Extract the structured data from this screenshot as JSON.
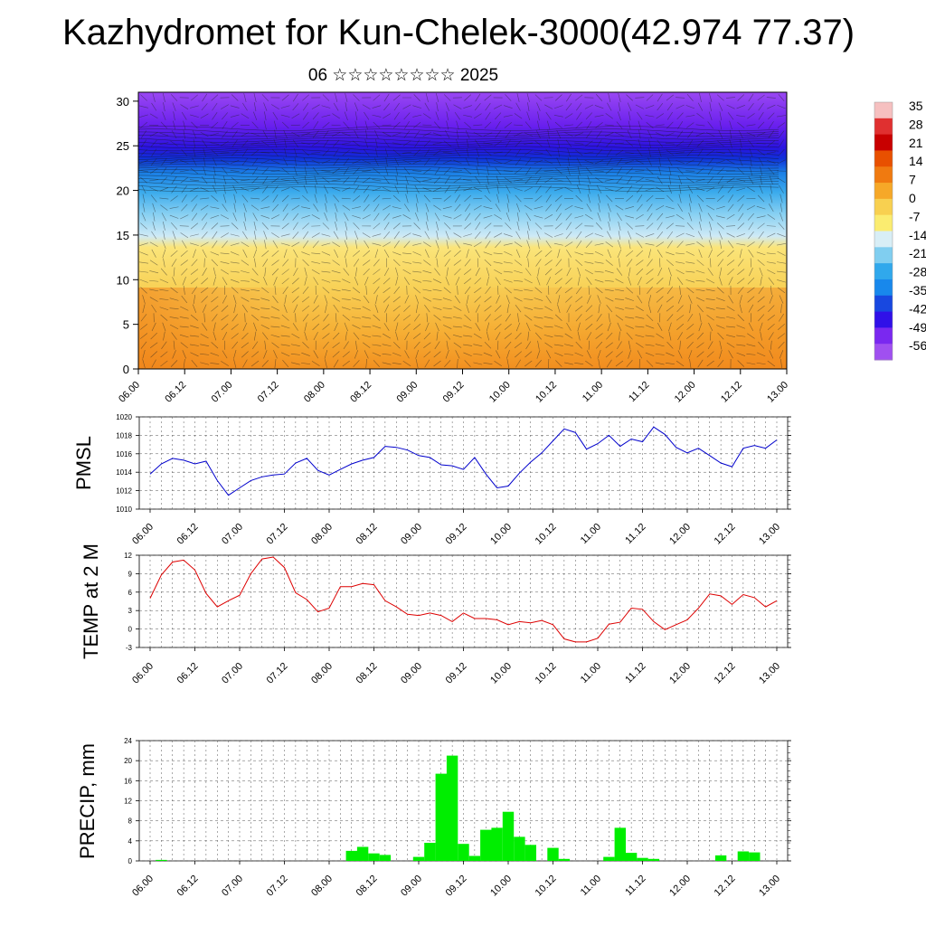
{
  "title": "Kazhydromet for Kun-Chelek-3000(42.974 77.37)",
  "subtitle": "06 ☆☆☆☆☆☆☆☆ 2025",
  "colors": {
    "pmsl_line": "#0000cc",
    "temp_line": "#dd0000",
    "precip_bar": "#00ee00",
    "grid": "#555555"
  },
  "chart_data": [
    {
      "type": "heatmap",
      "id": "cross-section",
      "y_ticks": [
        "0",
        "5",
        "10",
        "15",
        "20",
        "25",
        "30"
      ],
      "ylim": [
        0,
        31
      ],
      "x_ticks": [
        "06.00",
        "06.12",
        "07.00",
        "07.12",
        "08.00",
        "08.12",
        "09.00",
        "09.12",
        "10.00",
        "10.12",
        "11.00",
        "11.12",
        "12.00",
        "12.12",
        "13.00"
      ],
      "colorbar_labels": [
        "35",
        "28",
        "21",
        "14",
        "7",
        "0",
        "-7",
        "-14",
        "-21",
        "-28",
        "-35",
        "-42",
        "-49",
        "-56"
      ],
      "colorbar_colors": [
        "#f6c0c0",
        "#e03030",
        "#c80000",
        "#e85000",
        "#f07a10",
        "#f6a828",
        "#f8d050",
        "#fbec70",
        "#d8eef6",
        "#80cef0",
        "#30a8ec",
        "#1888ec",
        "#1848e0",
        "#3010e8",
        "#7a28f0",
        "#a050f0"
      ]
    },
    {
      "type": "line",
      "id": "pmsl",
      "ylabel": "PMSL",
      "ylim": [
        1010,
        1020
      ],
      "y_ticks": [
        "1010",
        "1012",
        "1014",
        "1016",
        "1018",
        "1020"
      ],
      "x_ticks": [
        "06.00",
        "06.12",
        "07.00",
        "07.12",
        "08.00",
        "08.12",
        "09.00",
        "09.12",
        "10.00",
        "10.12",
        "11.00",
        "11.12",
        "12.00",
        "12.12",
        "13.00"
      ],
      "values": [
        1013.8,
        1014.9,
        1015.5,
        1015.3,
        1014.9,
        1015.2,
        1013.1,
        1011.5,
        1012.3,
        1013.1,
        1013.5,
        1013.7,
        1013.8,
        1015.0,
        1015.5,
        1014.2,
        1013.7,
        1014.3,
        1014.9,
        1015.3,
        1015.6,
        1016.8,
        1016.7,
        1016.4,
        1015.8,
        1015.6,
        1014.8,
        1014.7,
        1014.3,
        1015.6,
        1013.8,
        1012.3,
        1012.5,
        1013.9,
        1015.1,
        1016.1,
        1017.4,
        1018.7,
        1018.3,
        1016.5,
        1017.1,
        1018.0,
        1016.8,
        1017.6,
        1017.3,
        1018.9,
        1018.1,
        1016.7,
        1016.1,
        1016.6,
        1015.8,
        1015.0,
        1014.6,
        1016.6,
        1016.9,
        1016.6,
        1017.5
      ]
    },
    {
      "type": "line",
      "id": "temp",
      "ylabel": "TEMP at 2 M",
      "ylim": [
        -3,
        12
      ],
      "y_ticks": [
        "-3",
        "0",
        "3",
        "6",
        "9",
        "12"
      ],
      "x_ticks": [
        "06.00",
        "06.12",
        "07.00",
        "07.12",
        "08.00",
        "08.12",
        "09.00",
        "09.12",
        "10.00",
        "10.12",
        "11.00",
        "11.12",
        "12.00",
        "12.12",
        "13.00"
      ],
      "values": [
        5.0,
        8.8,
        10.9,
        11.2,
        9.6,
        5.8,
        3.6,
        4.6,
        5.5,
        9.0,
        11.4,
        11.7,
        10.0,
        5.9,
        4.8,
        2.8,
        3.4,
        6.9,
        6.9,
        7.4,
        7.2,
        4.6,
        3.6,
        2.4,
        2.2,
        2.6,
        2.2,
        1.2,
        2.6,
        1.7,
        1.7,
        1.5,
        0.7,
        1.2,
        1.0,
        1.4,
        0.7,
        -1.6,
        -2.1,
        -2.1,
        -1.5,
        0.8,
        1.1,
        3.4,
        3.2,
        1.2,
        -0.1,
        0.7,
        1.5,
        3.4,
        5.7,
        5.4,
        4.0,
        5.6,
        5.1,
        3.6,
        4.6
      ]
    },
    {
      "type": "bar",
      "id": "precip",
      "ylabel": "PRECIP, mm",
      "ylim": [
        0,
        24
      ],
      "y_ticks": [
        "0",
        "4",
        "8",
        "12",
        "16",
        "20",
        "24"
      ],
      "x_ticks": [
        "06.00",
        "06.12",
        "07.00",
        "07.12",
        "08.00",
        "08.12",
        "09.00",
        "09.12",
        "10.00",
        "10.12",
        "11.00",
        "11.12",
        "12.00",
        "12.12",
        "13.00"
      ],
      "values": [
        0,
        0.2,
        0,
        0,
        0,
        0,
        0,
        0,
        0,
        0,
        0,
        0,
        0,
        0,
        0,
        0,
        0,
        0,
        2.0,
        2.8,
        1.5,
        1.2,
        0,
        0,
        0.8,
        3.6,
        17.4,
        21.0,
        3.4,
        1.0,
        6.2,
        6.6,
        9.8,
        4.8,
        3.2,
        0,
        2.6,
        0.4,
        0,
        0,
        0,
        0.8,
        6.6,
        1.6,
        0.6,
        0.4,
        0,
        0,
        0,
        0,
        0,
        1.1,
        0,
        1.9,
        1.7,
        0,
        0
      ]
    }
  ]
}
